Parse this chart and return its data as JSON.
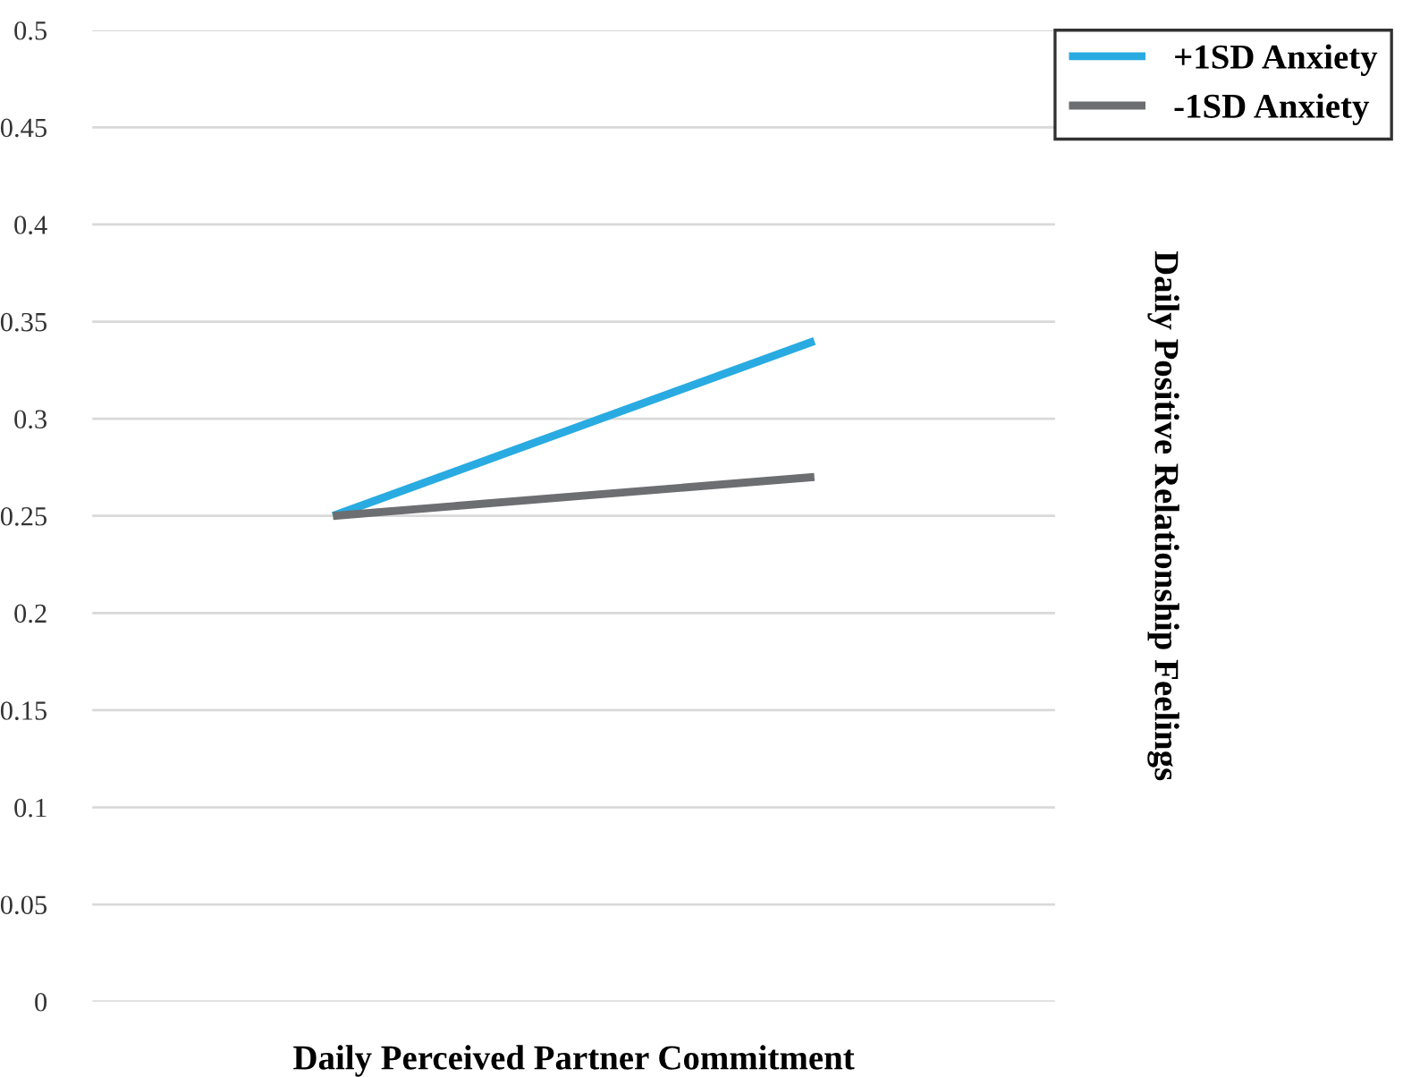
{
  "chart_data": {
    "type": "line",
    "xlabel": "Daily Perceived Partner Commitment",
    "ylabel": "Daily Positive Relationship Feelings",
    "categories": [
      null,
      null
    ],
    "series": [
      {
        "name": "+1SD Anxiety",
        "color": "#29abe2",
        "values": [
          0.25,
          0.34
        ]
      },
      {
        "name": "-1SD Anxiety",
        "color": "#6d6e71",
        "values": [
          0.25,
          0.27
        ]
      }
    ],
    "ylim": [
      0,
      0.5
    ],
    "yticks": [
      0,
      0.05,
      0.1,
      0.15,
      0.2,
      0.25,
      0.3,
      0.35,
      0.4,
      0.45,
      0.5
    ],
    "grid": "y",
    "legend": "top right",
    "marker": "none",
    "line_style": "solid"
  }
}
